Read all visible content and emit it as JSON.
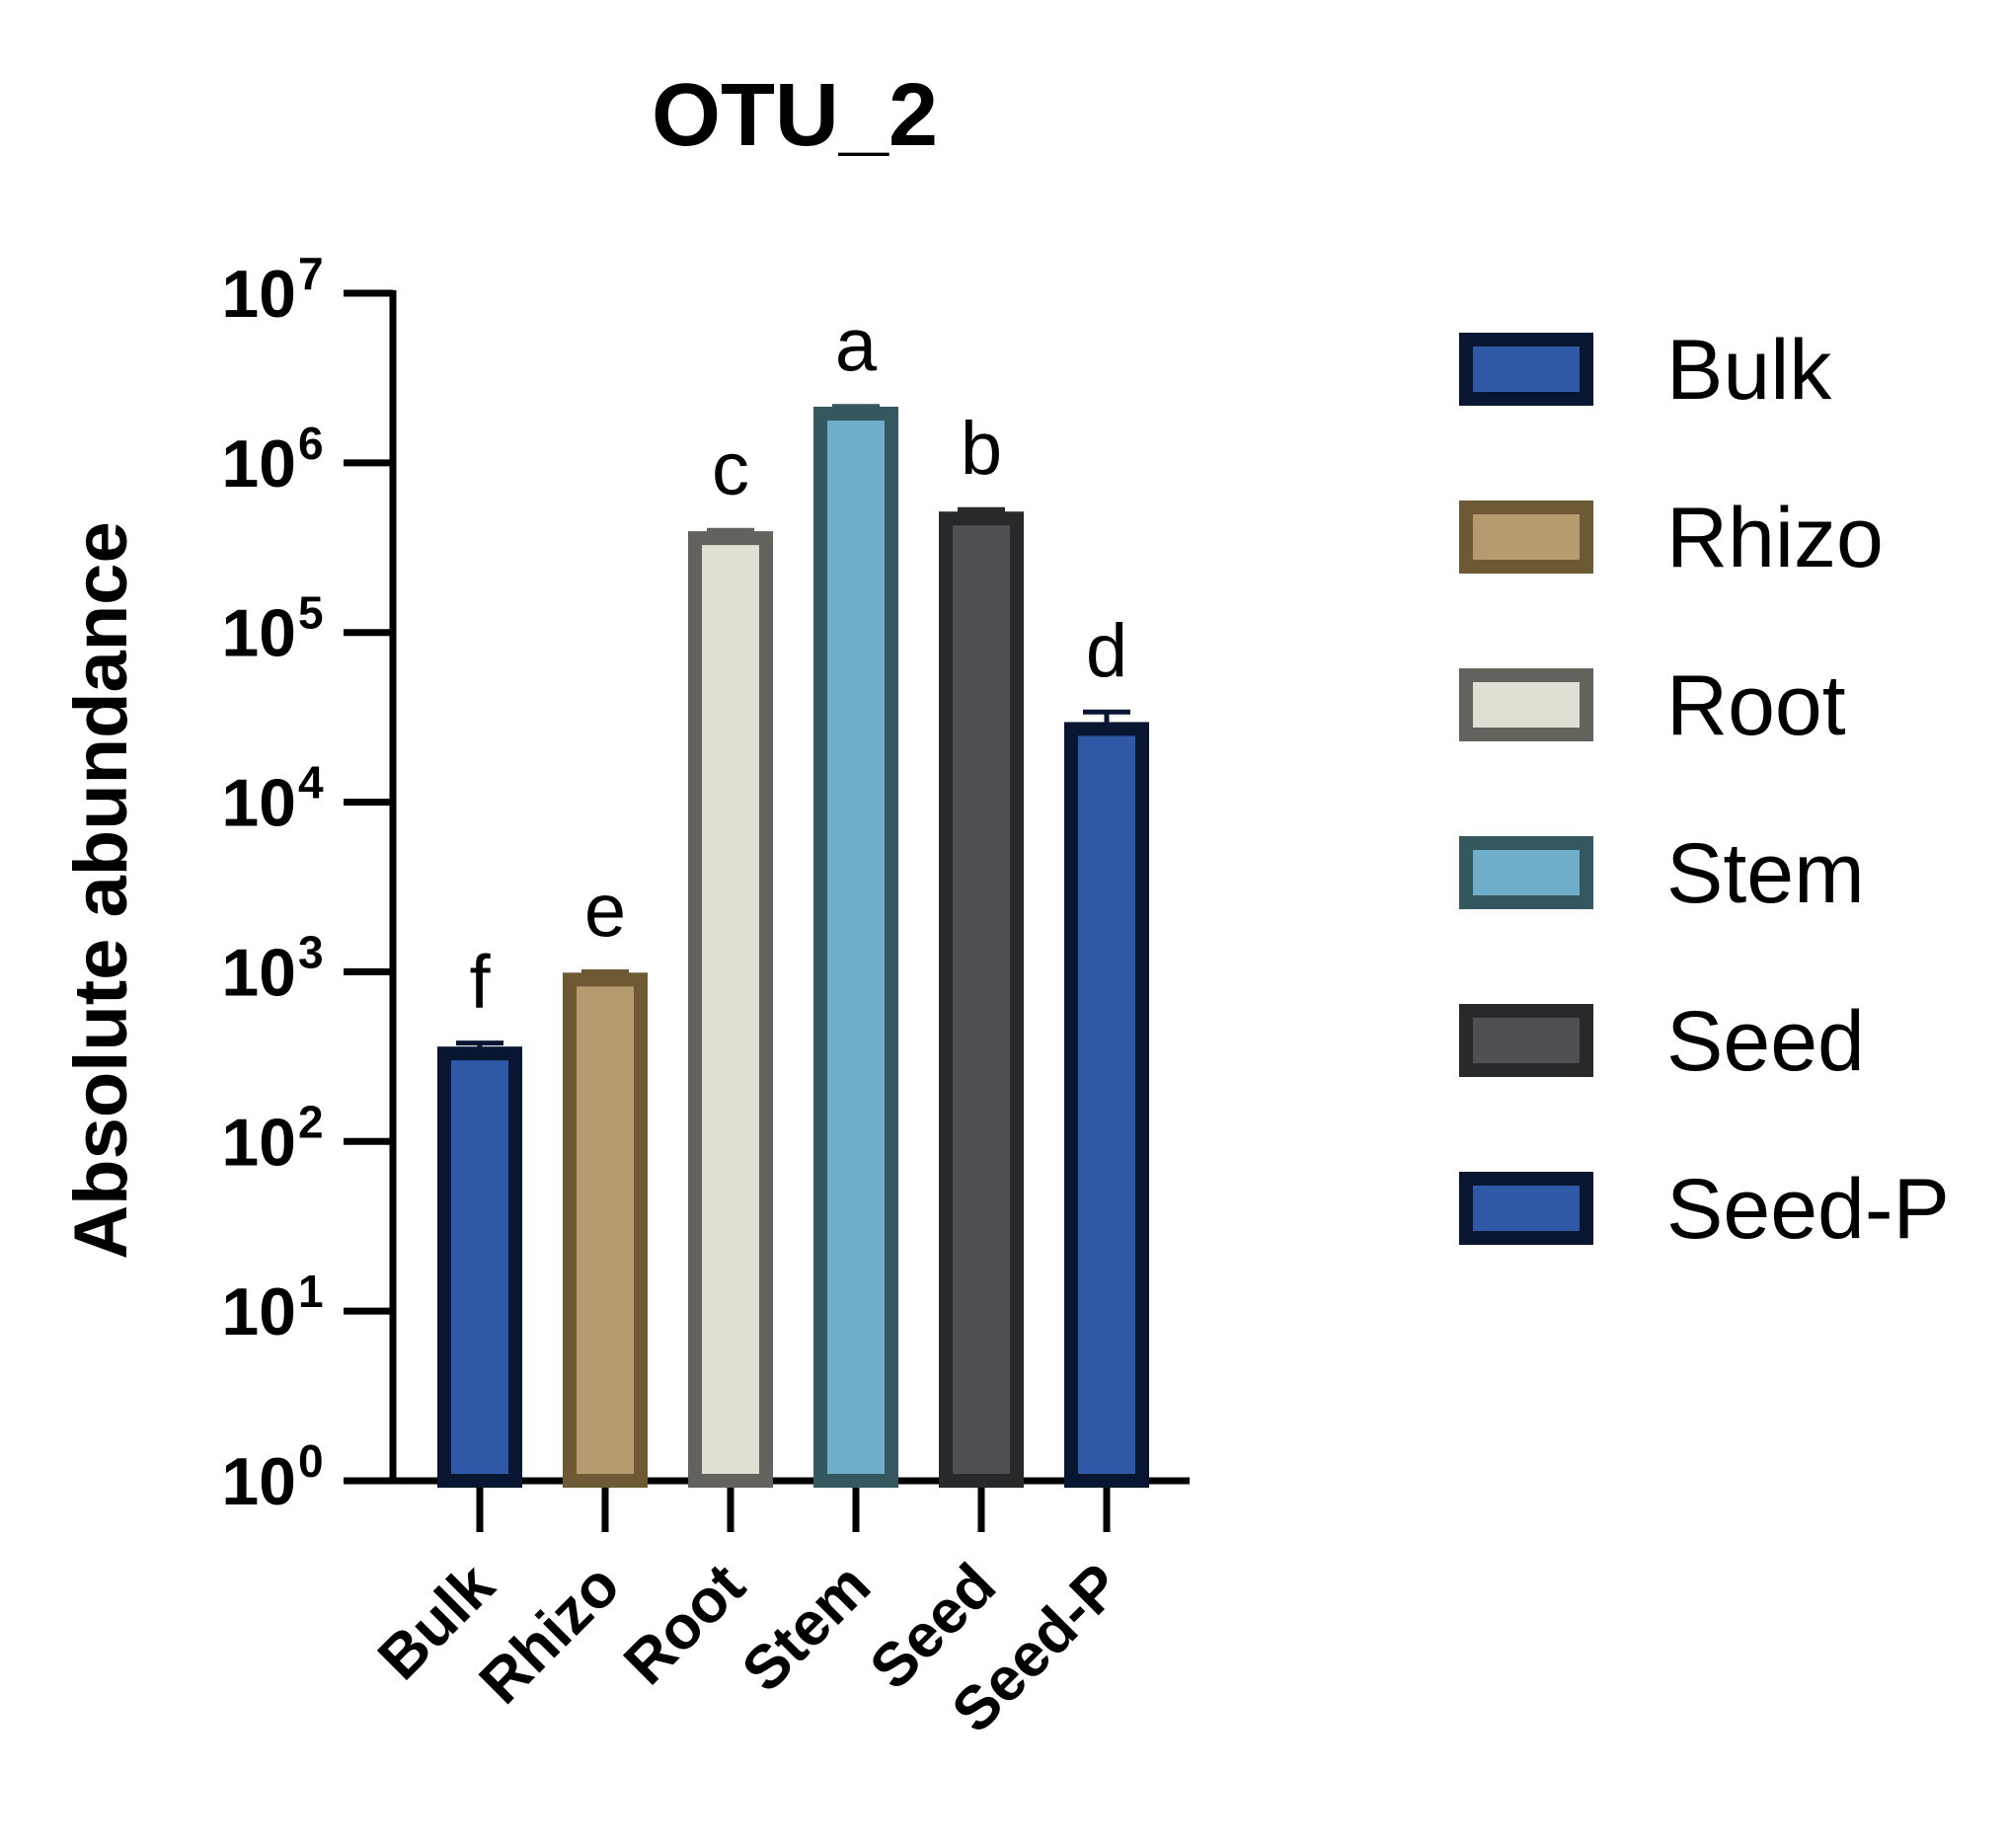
{
  "chart_data": {
    "type": "bar",
    "title": "OTU_2",
    "ylabel": "Absolute abundance",
    "xlabel": "",
    "yscale": "log",
    "ylim": [
      1,
      10000000
    ],
    "yticks": [
      {
        "base": "10",
        "exp": "0"
      },
      {
        "base": "10",
        "exp": "1"
      },
      {
        "base": "10",
        "exp": "2"
      },
      {
        "base": "10",
        "exp": "3"
      },
      {
        "base": "10",
        "exp": "4"
      },
      {
        "base": "10",
        "exp": "5"
      },
      {
        "base": "10",
        "exp": "6"
      },
      {
        "base": "10",
        "exp": "7"
      }
    ],
    "categories": [
      "Bulk",
      "Rhizo",
      "Root",
      "Stem",
      "Seed",
      "Seed-P"
    ],
    "values": [
      330,
      900,
      360000,
      1950000,
      470000,
      27000
    ],
    "error_upper": [
      380,
      1000,
      400000,
      2150000,
      530000,
      34000
    ],
    "significance_letters": [
      "f",
      "e",
      "c",
      "a",
      "b",
      "d"
    ],
    "colors": {
      "fill": [
        "#2f58a6",
        "#b59b70",
        "#e2ded4",
        "#6fadc8",
        "#4e5055",
        "#2f58a6"
      ],
      "stroke": [
        "#081632",
        "#6e5935",
        "#63625d",
        "#345760",
        "#28292b",
        "#081632"
      ],
      "axis": "#000000"
    },
    "legend": {
      "position": "right",
      "entries": [
        "Bulk",
        "Rhizo",
        "Root",
        "Stem",
        "Seed",
        "Seed-P"
      ]
    },
    "grid": false
  }
}
